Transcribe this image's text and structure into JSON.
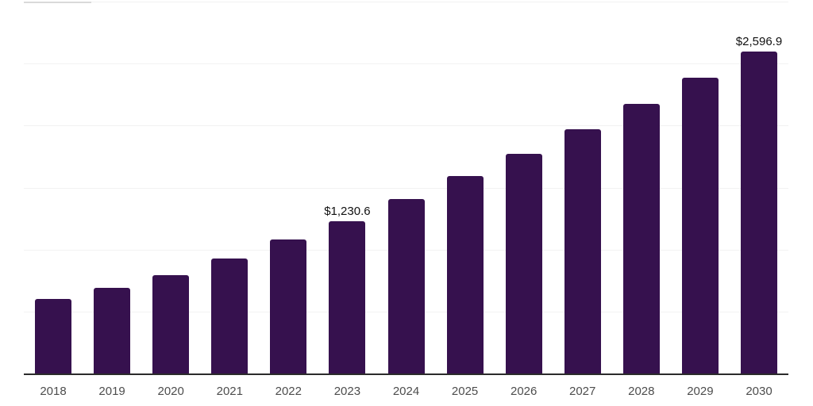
{
  "chart_data": {
    "type": "bar",
    "title": "",
    "xlabel": "",
    "ylabel": "",
    "categories": [
      "2018",
      "2019",
      "2020",
      "2021",
      "2022",
      "2023",
      "2024",
      "2025",
      "2026",
      "2027",
      "2028",
      "2029",
      "2030"
    ],
    "values": [
      600,
      690,
      795,
      930,
      1080,
      1230.6,
      1410,
      1590,
      1775,
      1970,
      2175,
      2385,
      2596.9
    ],
    "data_labels": {
      "2023": "$1,230.6",
      "2030": "$2,596.9"
    },
    "ylim": [
      0,
      3000
    ],
    "gridline_step": 500,
    "grid": true,
    "y_axis_tick_labels_visible": false,
    "legend_position": "none",
    "colors": {
      "bar": "#36114e",
      "axis_line": "#2b2b2b",
      "gridline": "#f2f2f2",
      "gridline_accent": "#d9d9d9",
      "tick_label": "#4d4d4d",
      "data_label": "#111111",
      "background": "#ffffff"
    }
  }
}
